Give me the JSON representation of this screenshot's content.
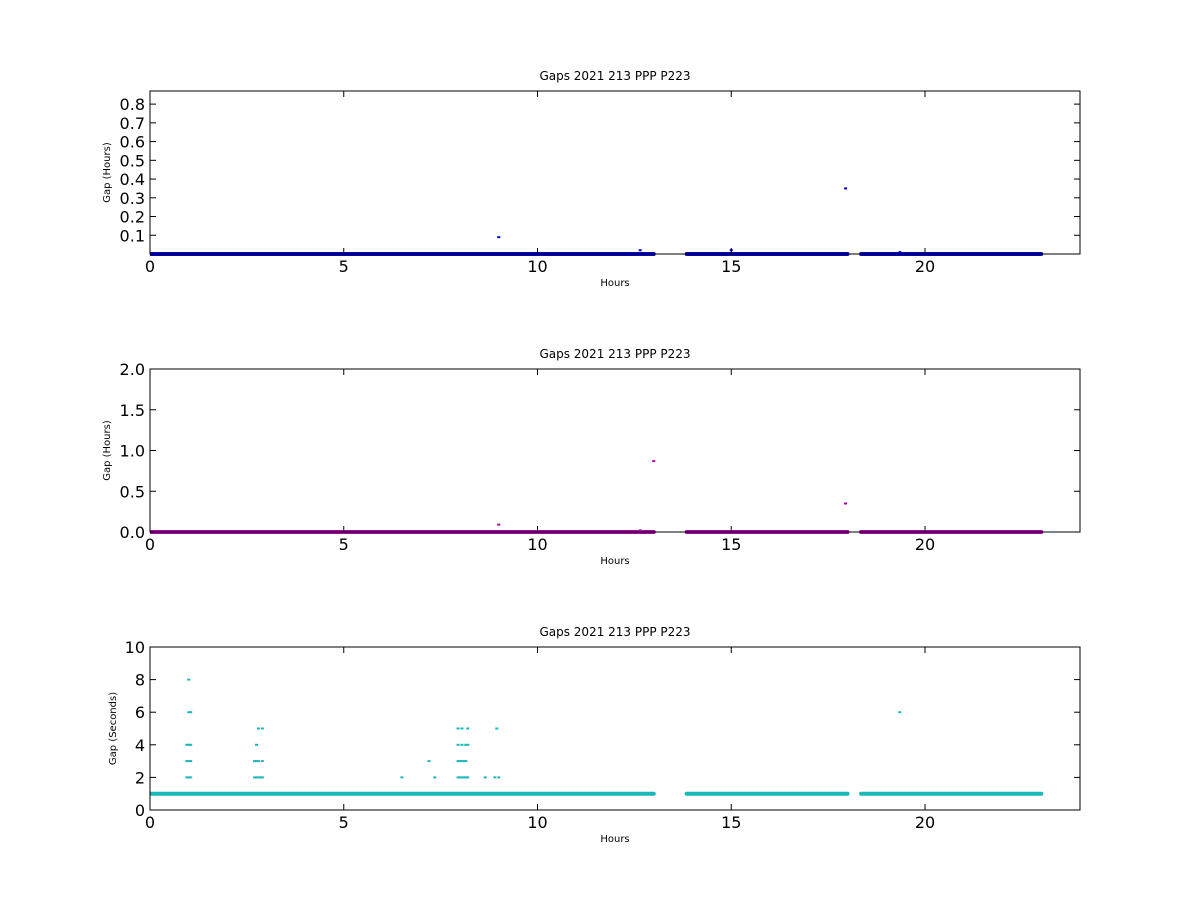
{
  "chart_data": [
    {
      "type": "scatter",
      "title": "Gaps 2021 213 PPP  P223",
      "xlabel": "Hours",
      "ylabel": "Gap (Hours)",
      "xlim": [
        0,
        24
      ],
      "ylim": [
        0,
        0.87
      ],
      "xticks": [
        0,
        5,
        10,
        15,
        20
      ],
      "yticks": [
        0.1,
        0.2,
        0.3,
        0.4,
        0.5,
        0.6,
        0.7,
        0.8
      ],
      "color": "#0000cc",
      "grid": false,
      "baseline_value": 0.0003,
      "baseline_segments": [
        [
          0,
          13.0
        ],
        [
          13.85,
          18.0
        ],
        [
          18.35,
          23.0
        ]
      ],
      "points": [
        {
          "x": 9.0,
          "y": 0.09
        },
        {
          "x": 12.65,
          "y": 0.02
        },
        {
          "x": 15.0,
          "y": 0.02
        },
        {
          "x": 17.95,
          "y": 0.35
        },
        {
          "x": 19.35,
          "y": 0.01
        }
      ]
    },
    {
      "type": "scatter",
      "title": "Gaps 2021 213 PPP  P223",
      "xlabel": "Hours",
      "ylabel": "Gap (Hours)",
      "xlim": [
        0,
        24
      ],
      "ylim": [
        0,
        2.0
      ],
      "xticks": [
        0,
        5,
        10,
        15,
        20
      ],
      "yticks": [
        0.0,
        0.5,
        1.0,
        1.5,
        2.0
      ],
      "color": "#aa00aa",
      "grid": false,
      "baseline_value": 0.0003,
      "baseline_segments": [
        [
          0,
          13.0
        ],
        [
          13.85,
          18.0
        ],
        [
          18.35,
          23.0
        ]
      ],
      "points": [
        {
          "x": 9.0,
          "y": 0.09
        },
        {
          "x": 12.65,
          "y": 0.02
        },
        {
          "x": 13.0,
          "y": 0.87
        },
        {
          "x": 17.95,
          "y": 0.35
        }
      ]
    },
    {
      "type": "scatter",
      "title": "Gaps 2021 213 PPP  P223",
      "xlabel": "Hours",
      "ylabel": "Gap (Seconds)",
      "xlim": [
        0,
        24
      ],
      "ylim": [
        0,
        10
      ],
      "xticks": [
        0,
        5,
        10,
        15,
        20
      ],
      "yticks": [
        0,
        2,
        4,
        6,
        8,
        10
      ],
      "color": "#1ab8b8",
      "grid": false,
      "baseline_value": 1,
      "baseline_segments": [
        [
          0,
          13.0
        ],
        [
          13.85,
          18.0
        ],
        [
          18.35,
          23.0
        ]
      ],
      "points": [
        {
          "x": 1.0,
          "y": 8
        },
        {
          "x": 1.0,
          "y": 6
        },
        {
          "x": 1.05,
          "y": 6
        },
        {
          "x": 0.95,
          "y": 4
        },
        {
          "x": 1.0,
          "y": 4
        },
        {
          "x": 1.05,
          "y": 4
        },
        {
          "x": 0.95,
          "y": 3
        },
        {
          "x": 1.0,
          "y": 3
        },
        {
          "x": 1.05,
          "y": 3
        },
        {
          "x": 0.95,
          "y": 2
        },
        {
          "x": 1.0,
          "y": 2
        },
        {
          "x": 1.05,
          "y": 2
        },
        {
          "x": 2.75,
          "y": 4
        },
        {
          "x": 2.8,
          "y": 5
        },
        {
          "x": 2.9,
          "y": 5
        },
        {
          "x": 2.7,
          "y": 3
        },
        {
          "x": 2.75,
          "y": 3
        },
        {
          "x": 2.8,
          "y": 3
        },
        {
          "x": 2.9,
          "y": 3
        },
        {
          "x": 2.7,
          "y": 2
        },
        {
          "x": 2.75,
          "y": 2
        },
        {
          "x": 2.8,
          "y": 2
        },
        {
          "x": 2.85,
          "y": 2
        },
        {
          "x": 2.9,
          "y": 2
        },
        {
          "x": 6.5,
          "y": 2
        },
        {
          "x": 7.2,
          "y": 3
        },
        {
          "x": 7.35,
          "y": 2
        },
        {
          "x": 7.95,
          "y": 5
        },
        {
          "x": 8.05,
          "y": 5
        },
        {
          "x": 8.2,
          "y": 5
        },
        {
          "x": 7.95,
          "y": 4
        },
        {
          "x": 8.05,
          "y": 4
        },
        {
          "x": 8.15,
          "y": 4
        },
        {
          "x": 8.2,
          "y": 4
        },
        {
          "x": 7.95,
          "y": 3
        },
        {
          "x": 8.0,
          "y": 3
        },
        {
          "x": 8.05,
          "y": 3
        },
        {
          "x": 8.1,
          "y": 3
        },
        {
          "x": 8.15,
          "y": 3
        },
        {
          "x": 7.95,
          "y": 2
        },
        {
          "x": 8.0,
          "y": 2
        },
        {
          "x": 8.05,
          "y": 2
        },
        {
          "x": 8.1,
          "y": 2
        },
        {
          "x": 8.15,
          "y": 2
        },
        {
          "x": 8.2,
          "y": 2
        },
        {
          "x": 8.65,
          "y": 2
        },
        {
          "x": 8.95,
          "y": 5
        },
        {
          "x": 8.9,
          "y": 2
        },
        {
          "x": 9.0,
          "y": 2
        },
        {
          "x": 19.35,
          "y": 6
        }
      ]
    }
  ]
}
